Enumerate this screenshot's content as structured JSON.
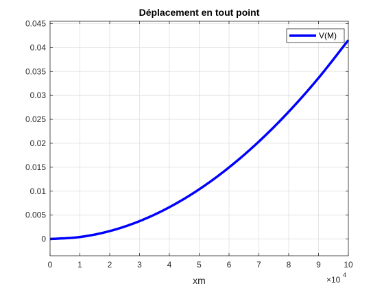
{
  "chart_data": {
    "type": "line",
    "title": "Déplacement en tout point",
    "xlabel": "xm",
    "ylabel": "",
    "x_exponent_base": "×10",
    "x_exponent_power": "4",
    "x_scale": 10000,
    "xlim": [
      0,
      100000
    ],
    "ylim": [
      -0.0035,
      0.0455
    ],
    "x_ticks": [
      0,
      10000,
      20000,
      30000,
      40000,
      50000,
      60000,
      70000,
      80000,
      90000,
      100000
    ],
    "x_tick_labels": [
      "0",
      "1",
      "2",
      "3",
      "4",
      "5",
      "6",
      "7",
      "8",
      "9",
      "10"
    ],
    "y_ticks": [
      0,
      0.005,
      0.01,
      0.015,
      0.02,
      0.025,
      0.03,
      0.035,
      0.04,
      0.045
    ],
    "y_tick_labels": [
      "0",
      "0.005",
      "0.01",
      "0.015",
      "0.02",
      "0.025",
      "0.03",
      "0.035",
      "0.04",
      "0.045"
    ],
    "grid": true,
    "legend_position": "top-right",
    "series": [
      {
        "name": "V(M)",
        "color": "#0000ff",
        "x": [
          0,
          10000,
          20000,
          30000,
          40000,
          50000,
          60000,
          70000,
          80000,
          90000,
          100000
        ],
        "y": [
          0,
          0.00042,
          0.00166,
          0.00374,
          0.00665,
          0.01039,
          0.01496,
          0.02036,
          0.02659,
          0.03365,
          0.04155
        ]
      }
    ]
  }
}
